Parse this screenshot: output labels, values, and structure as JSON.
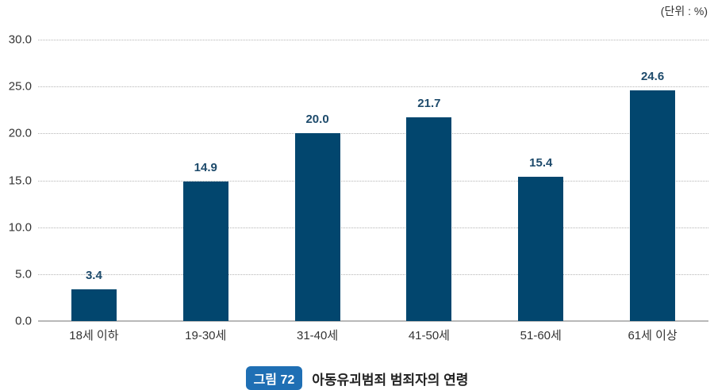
{
  "unit_label": "(단위 : %)",
  "caption": {
    "figure_label": "그림 72",
    "title": "아동유괴범죄 범죄자의 연령"
  },
  "colors": {
    "bar": "#02466e",
    "value_label": "#1d4a6b",
    "badge": "#1f6fb4"
  },
  "y_ticks": [
    "30.0",
    "25.0",
    "20.0",
    "15.0",
    "10.0",
    "5.0",
    "0.0"
  ],
  "categories": [
    "18세 이하",
    "19-30세",
    "31-40세",
    "41-50세",
    "51-60세",
    "61세 이상"
  ],
  "value_labels": [
    "3.4",
    "14.9",
    "20.0",
    "21.7",
    "15.4",
    "24.6"
  ],
  "chart_data": {
    "type": "bar",
    "title": "아동유괴범죄 범죄자의 연령",
    "figure_label": "그림 72",
    "unit": "(단위 : %)",
    "categories": [
      "18세 이하",
      "19-30세",
      "31-40세",
      "41-50세",
      "51-60세",
      "61세 이상"
    ],
    "values": [
      3.4,
      14.9,
      20.0,
      21.7,
      15.4,
      24.6
    ],
    "xlabel": "",
    "ylabel": "",
    "ylim": [
      0,
      30
    ],
    "yticks": [
      0,
      5,
      10,
      15,
      20,
      25,
      30
    ],
    "grid": true,
    "legend": null
  }
}
